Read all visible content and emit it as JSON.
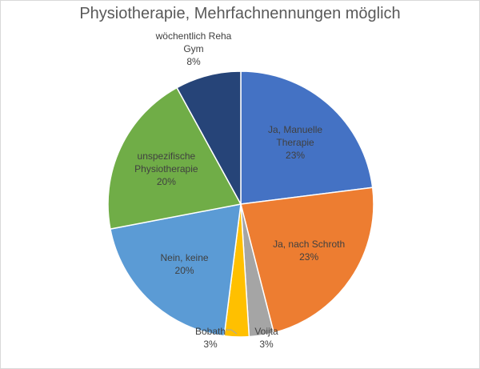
{
  "chart_data": {
    "type": "pie",
    "title": "Physiotherapie, Mehrfachnennungen möglich",
    "categories": [
      "Ja, Manuelle Therapie",
      "Ja, nach Schroth",
      "Voijta",
      "Bobath",
      "Nein, keine",
      "unspezifische Physiotherapie",
      "wöchentlich Reha Gym"
    ],
    "values": [
      23,
      23,
      3,
      3,
      20,
      20,
      8
    ],
    "value_labels": [
      "23%",
      "23%",
      "3%",
      "3%",
      "20%",
      "20%",
      "8%"
    ],
    "colors": [
      "#4472c4",
      "#ed7d31",
      "#a5a5a5",
      "#ffc000",
      "#5b9bd5",
      "#70ad47",
      "#264478"
    ]
  }
}
